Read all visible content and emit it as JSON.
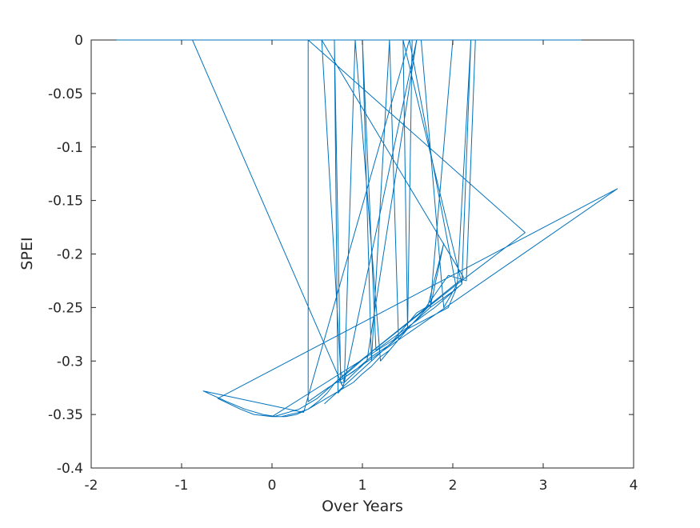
{
  "chart_data": {
    "type": "line",
    "title": "",
    "xlabel": "Over Years",
    "ylabel": "SPEI",
    "xlim": [
      -2,
      4
    ],
    "ylim": [
      -0.4,
      0
    ],
    "xticks": [
      -2,
      -1,
      0,
      1,
      2,
      3,
      4
    ],
    "yticks": [
      -0.4,
      -0.35,
      -0.3,
      -0.25,
      -0.2,
      -0.15,
      -0.1,
      -0.05,
      0
    ],
    "xtick_labels": [
      "-2",
      "-1",
      "0",
      "1",
      "2",
      "3",
      "4"
    ],
    "ytick_labels": [
      "-0.4",
      "-0.35",
      "-0.3",
      "-0.25",
      "-0.2",
      "-0.15",
      "-0.1",
      "-0.05",
      "0"
    ],
    "grid": false,
    "box": true,
    "colors": {
      "line": "#0072BD",
      "axis": "#262626",
      "background": "#ffffff"
    },
    "series": [
      {
        "x": [
          -1.72,
          3.42,
          3.42,
          -0.88,
          0.79,
          0.76,
          0.69,
          0.73,
          0.78,
          0.8,
          0.76,
          0.55,
          2.12,
          1.12,
          0.85,
          0.7,
          0.61,
          0.51,
          0.4,
          0.27,
          0.15,
          0.05,
          -0.1,
          -0.3,
          -0.5,
          -0.76,
          0.35,
          1.52,
          2.04,
          1.95,
          1.5,
          1.3,
          1.1,
          0.9,
          0.62,
          0.4,
          0.4,
          2.8,
          2.05,
          0.9,
          0.7,
          0.5,
          0.3,
          0.1,
          0.02,
          0.0,
          0.0,
          1.35,
          1.6,
          1.7,
          1.95,
          2.15,
          2.25,
          2.0,
          1.75,
          1.9,
          1.72,
          1.5,
          1.4,
          1.3,
          1.2,
          1.1,
          1.0,
          0.9,
          0.8,
          0.7,
          0.6,
          0.5,
          0.4,
          0.3,
          0.2,
          0.1,
          0.0,
          -0.2,
          -0.35,
          -0.6,
          3.82,
          3.82,
          0.72,
          0.8,
          1.6,
          1.05,
          0.8,
          0.92,
          1.2,
          1.4,
          1.3,
          1.1,
          1.0,
          1.15,
          1.8,
          2.1,
          2.2,
          2.05,
          1.9,
          1.65,
          1.55,
          1.5,
          1.45,
          2.1,
          2.0,
          1.75,
          0.58
        ],
        "y": [
          0.0,
          0.0,
          0.0,
          0.0,
          -0.325,
          -0.32,
          0.0,
          -0.33,
          -0.325,
          -0.32,
          -0.31,
          0.0,
          -0.222,
          -0.29,
          -0.31,
          -0.32,
          -0.33,
          -0.338,
          -0.345,
          -0.35,
          -0.352,
          -0.352,
          -0.35,
          -0.345,
          -0.338,
          -0.328,
          -0.348,
          0.0,
          -0.232,
          -0.25,
          -0.27,
          -0.285,
          -0.296,
          -0.31,
          -0.325,
          -0.338,
          0.0,
          -0.18,
          -0.228,
          -0.305,
          -0.32,
          -0.335,
          -0.345,
          -0.35,
          -0.352,
          -0.352,
          -0.352,
          -0.28,
          -0.255,
          -0.25,
          -0.22,
          -0.225,
          0.0,
          0.0,
          -0.25,
          -0.19,
          -0.25,
          -0.27,
          -0.28,
          -0.29,
          -0.296,
          -0.305,
          -0.312,
          -0.32,
          -0.325,
          -0.33,
          -0.335,
          -0.34,
          -0.345,
          -0.348,
          -0.35,
          -0.352,
          -0.352,
          -0.35,
          -0.345,
          -0.335,
          -0.139,
          -0.139,
          -0.32,
          -0.32,
          0.0,
          -0.3,
          -0.32,
          0.0,
          -0.3,
          -0.28,
          0.0,
          -0.3,
          0.0,
          -0.29,
          -0.25,
          -0.228,
          0.0,
          -0.228,
          -0.25,
          0.0,
          0.0,
          -0.27,
          0.0,
          -0.228,
          -0.235,
          -0.25,
          -0.34
        ]
      }
    ]
  }
}
